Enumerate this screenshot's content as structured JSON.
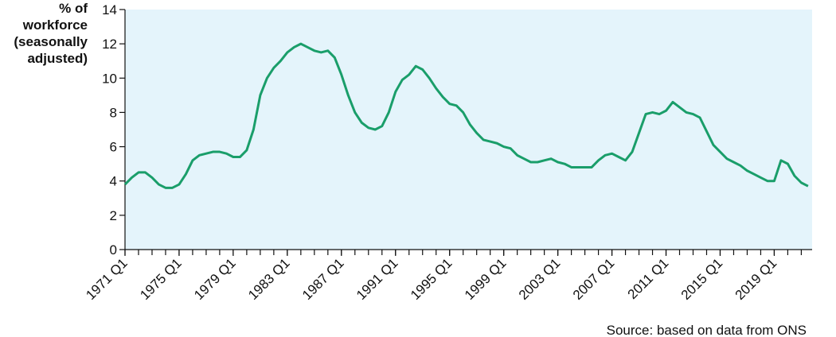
{
  "chart_data": {
    "type": "line",
    "y_label": [
      "% of",
      "workforce",
      "(seasonally",
      "adjusted)"
    ],
    "source": "Source: based on data from ONS",
    "x": [
      1971,
      1971.5,
      1972,
      1972.5,
      1973,
      1973.5,
      1974,
      1974.5,
      1975,
      1975.5,
      1976,
      1976.5,
      1977,
      1977.5,
      1978,
      1978.5,
      1979,
      1979.5,
      1980,
      1980.5,
      1981,
      1981.5,
      1982,
      1982.5,
      1983,
      1983.5,
      1984,
      1984.5,
      1985,
      1985.5,
      1986,
      1986.5,
      1987,
      1987.5,
      1988,
      1988.5,
      1989,
      1989.5,
      1990,
      1990.5,
      1991,
      1991.5,
      1992,
      1992.5,
      1993,
      1993.5,
      1994,
      1994.5,
      1995,
      1995.5,
      1996,
      1996.5,
      1997,
      1997.5,
      1998,
      1998.5,
      1999,
      1999.5,
      2000,
      2000.5,
      2001,
      2001.5,
      2002,
      2002.5,
      2003,
      2003.5,
      2004,
      2004.5,
      2005,
      2005.5,
      2006,
      2006.5,
      2007,
      2007.5,
      2008,
      2008.5,
      2009,
      2009.5,
      2010,
      2010.5,
      2011,
      2011.5,
      2012,
      2012.5,
      2013,
      2013.5,
      2014,
      2014.5,
      2015,
      2015.5,
      2016,
      2016.5,
      2017,
      2017.5,
      2018,
      2018.5,
      2019,
      2019.5,
      2020,
      2020.5,
      2021,
      2021.5
    ],
    "series": [
      {
        "color": "#1a9e6a",
        "values": [
          3.8,
          4.2,
          4.5,
          4.5,
          4.2,
          3.8,
          3.6,
          3.6,
          3.8,
          4.4,
          5.2,
          5.5,
          5.6,
          5.7,
          5.7,
          5.6,
          5.4,
          5.4,
          5.8,
          7.0,
          9.0,
          10.0,
          10.6,
          11.0,
          11.5,
          11.8,
          12.0,
          11.8,
          11.6,
          11.5,
          11.6,
          11.2,
          10.2,
          9.0,
          8.0,
          7.4,
          7.1,
          7.0,
          7.2,
          8.0,
          9.2,
          9.9,
          10.2,
          10.7,
          10.5,
          10.0,
          9.4,
          8.9,
          8.5,
          8.4,
          8.0,
          7.3,
          6.8,
          6.4,
          6.3,
          6.2,
          6.0,
          5.9,
          5.5,
          5.3,
          5.1,
          5.1,
          5.2,
          5.3,
          5.1,
          5.0,
          4.8,
          4.8,
          4.8,
          4.8,
          5.2,
          5.5,
          5.6,
          5.4,
          5.2,
          5.7,
          6.8,
          7.9,
          8.0,
          7.9,
          8.1,
          8.6,
          8.3,
          8.0,
          7.9,
          7.7,
          6.9,
          6.1,
          5.7,
          5.3,
          5.1,
          4.9,
          4.6,
          4.4,
          4.2,
          4.0,
          4.0,
          5.2,
          5.0,
          4.3,
          3.9,
          3.7
        ]
      }
    ],
    "xlim": [
      1971,
      2021.8
    ],
    "xticks": [
      {
        "value": 1971,
        "label": "1971 Q1"
      },
      {
        "value": 1975,
        "label": "1975 Q1"
      },
      {
        "value": 1979,
        "label": "1979 Q1"
      },
      {
        "value": 1983,
        "label": "1983 Q1"
      },
      {
        "value": 1987,
        "label": "1987 Q1"
      },
      {
        "value": 1991,
        "label": "1991 Q1"
      },
      {
        "value": 1995,
        "label": "1995 Q1"
      },
      {
        "value": 1999,
        "label": "1999 Q1"
      },
      {
        "value": 2003,
        "label": "2003 Q1"
      },
      {
        "value": 2007,
        "label": "2007 Q1"
      },
      {
        "value": 2011,
        "label": "2011 Q1"
      },
      {
        "value": 2015,
        "label": "2015 Q1"
      },
      {
        "value": 2019,
        "label": "2019 Q1"
      }
    ],
    "ylim": [
      0,
      14
    ],
    "yticks": [
      0,
      2,
      4,
      6,
      8,
      10,
      12,
      14
    ]
  }
}
